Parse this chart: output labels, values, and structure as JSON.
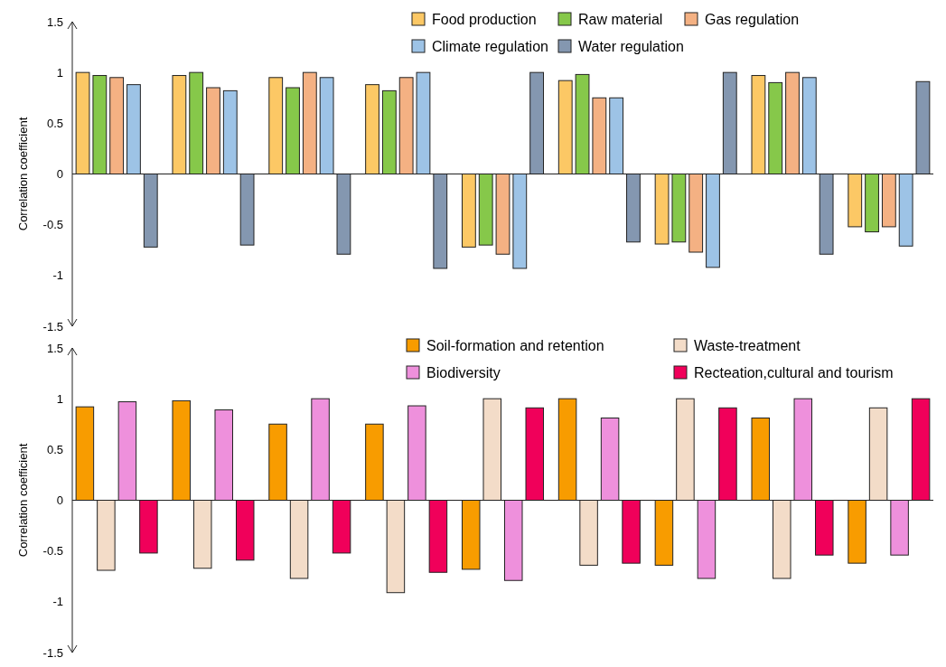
{
  "chart_data": [
    {
      "type": "bar",
      "ylabel": "Correlation coefficient",
      "categories": [
        null,
        null,
        null,
        null,
        null,
        null,
        null,
        null,
        null
      ],
      "ylim": [
        -1.5,
        1.5
      ],
      "yticks": [
        -1.5,
        -1,
        -0.5,
        0,
        0.5,
        1,
        1.5
      ],
      "tick_labels": "y",
      "legend": "top",
      "series": [
        {
          "name": "Food production",
          "color": "#fcc865",
          "values": [
            1.0,
            0.97,
            0.95,
            0.88,
            -0.72,
            0.92,
            -0.69,
            0.97,
            -0.52
          ]
        },
        {
          "name": "Raw material",
          "color": "#86c84a",
          "values": [
            0.97,
            1.0,
            0.85,
            0.82,
            -0.7,
            0.98,
            -0.67,
            0.9,
            -0.57
          ]
        },
        {
          "name": "Gas regulation",
          "color": "#f4b183",
          "values": [
            0.95,
            0.85,
            1.0,
            0.95,
            -0.79,
            0.75,
            -0.77,
            1.0,
            -0.52
          ]
        },
        {
          "name": "Climate regulation",
          "color": "#9dc3e6",
          "values": [
            0.88,
            0.82,
            0.95,
            1.0,
            -0.93,
            0.75,
            -0.92,
            0.95,
            -0.71
          ]
        },
        {
          "name": "Water regulation",
          "color": "#8497b0",
          "values": [
            -0.72,
            -0.7,
            -0.79,
            -0.93,
            1.0,
            -0.67,
            1.0,
            -0.79,
            0.91
          ]
        }
      ]
    },
    {
      "type": "bar",
      "ylabel": "Correlation coefficient",
      "categories": [
        null,
        null,
        null,
        null,
        null,
        null,
        null,
        null,
        null
      ],
      "ylim": [
        -1.5,
        1.5
      ],
      "yticks": [
        -1.5,
        -1,
        -0.5,
        0,
        0.5,
        1,
        1.5
      ],
      "tick_labels": "y",
      "legend": "top",
      "series": [
        {
          "name": "Soil-formation and retention",
          "color": "#f89c00",
          "values": [
            0.92,
            0.98,
            0.75,
            0.75,
            -0.68,
            1.0,
            -0.64,
            0.81,
            -0.62
          ]
        },
        {
          "name": "Waste-treatment",
          "color": "#f3dcc8",
          "values": [
            -0.69,
            -0.67,
            -0.77,
            -0.91,
            1.0,
            -0.64,
            1.0,
            -0.77,
            0.91
          ]
        },
        {
          "name": "Biodiversity",
          "color": "#ee90dc",
          "values": [
            0.97,
            0.89,
            1.0,
            0.93,
            -0.79,
            0.81,
            -0.77,
            1.0,
            -0.54
          ]
        },
        {
          "name": "Recteation,cultural and tourism",
          "color": "#f0005a",
          "values": [
            -0.52,
            -0.59,
            -0.52,
            -0.71,
            0.91,
            -0.62,
            0.91,
            -0.54,
            1.0
          ]
        }
      ]
    }
  ]
}
